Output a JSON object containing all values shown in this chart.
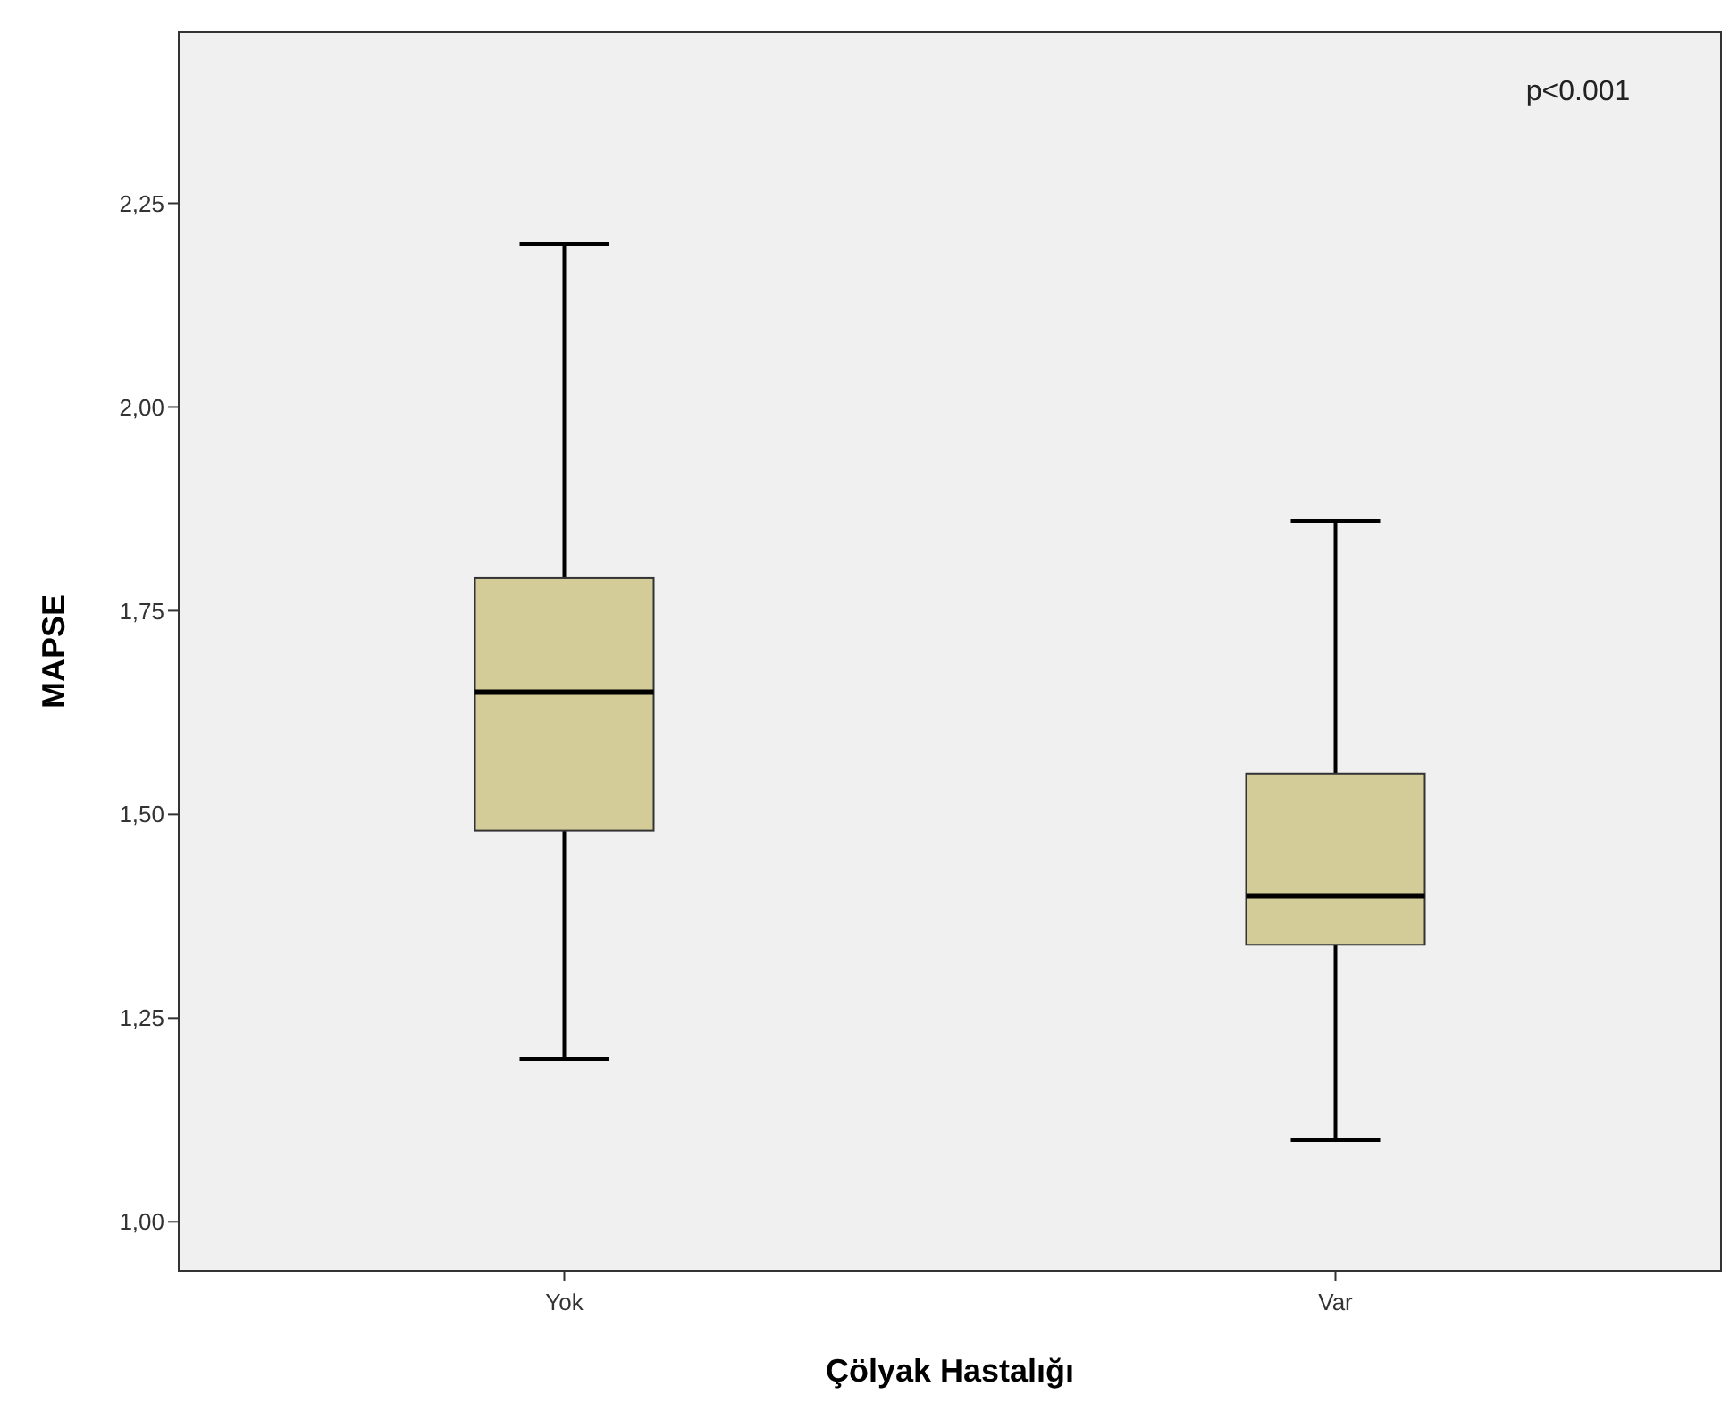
{
  "chart_data": {
    "type": "box",
    "xlabel": "Çölyak Hastalığı",
    "ylabel": "MAPSE",
    "categories": [
      "Yok",
      "Var"
    ],
    "boxes": [
      {
        "low": 1.2,
        "q1": 1.48,
        "median": 1.65,
        "q3": 1.79,
        "high": 2.2
      },
      {
        "low": 1.1,
        "q1": 1.34,
        "median": 1.4,
        "q3": 1.55,
        "high": 1.86
      }
    ],
    "color": "#d3cc98",
    "ylim": [
      0.94,
      2.46
    ],
    "yticks": [
      {
        "value": 1,
        "label": "1,00"
      },
      {
        "value": 1.25,
        "label": "1,25"
      },
      {
        "value": 1.5,
        "label": "1,50"
      },
      {
        "value": 1.75,
        "label": "1,75"
      },
      {
        "value": 2,
        "label": "2,00"
      },
      {
        "value": 2.25,
        "label": "2,25"
      }
    ],
    "annotations": [
      "p<0.001"
    ]
  }
}
